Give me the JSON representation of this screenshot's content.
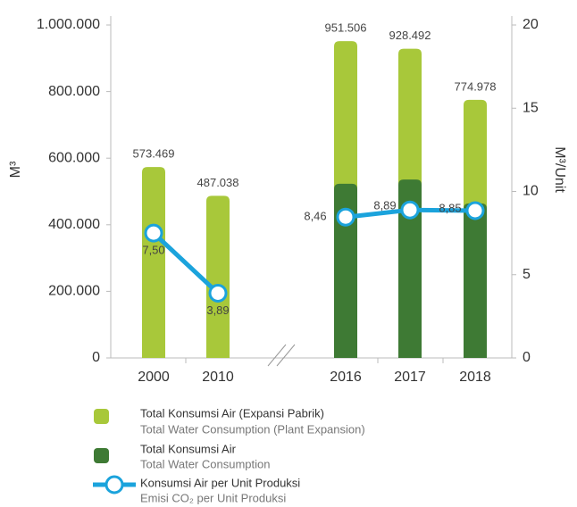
{
  "chart_data": {
    "type": "bar-line",
    "categories": [
      "2000",
      "2010",
      "2016",
      "2017",
      "2018"
    ],
    "ylim": [
      0,
      1000000
    ],
    "yticks": [
      {
        "value": 0,
        "label": "0"
      },
      {
        "value": 200000,
        "label": "200.000"
      },
      {
        "value": 400000,
        "label": "400.000"
      },
      {
        "value": 600000,
        "label": "600.000"
      },
      {
        "value": 800000,
        "label": "800.000"
      },
      {
        "value": 1000000,
        "label": "1.000.000"
      }
    ],
    "y2lim": [
      0,
      20
    ],
    "y2ticks": [
      0,
      5,
      10,
      15,
      20
    ],
    "ylabel": "M³",
    "y2label": "M³/Unit",
    "series": [
      {
        "name": "Total Konsumsi Air (Expansi Pabrik)",
        "subtitle": "Total Water Consumption (Plant Expansion)",
        "color": "#a8c83a",
        "values": [
          573469,
          487038,
          951506,
          928492,
          774978
        ],
        "value_labels": [
          "573.469",
          "487.038",
          "951.506",
          "928.492",
          "774.978"
        ]
      },
      {
        "name": "Total Konsumsi Air",
        "subtitle": "Total Water Consumption",
        "color": "#3e7a34",
        "values": [
          null,
          null,
          523000,
          536000,
          464000
        ]
      },
      {
        "name": "Konsumsi Air per Unit Produksi",
        "subtitle": "Emisi CO₂ per Unit Produksi",
        "color": "#1ba3dc",
        "axis": "y2",
        "values": [
          7.5,
          3.89,
          8.46,
          8.89,
          8.85
        ],
        "value_labels": [
          "7,50",
          "3,89",
          "8,46",
          "8,89",
          "8,85"
        ]
      }
    ]
  }
}
